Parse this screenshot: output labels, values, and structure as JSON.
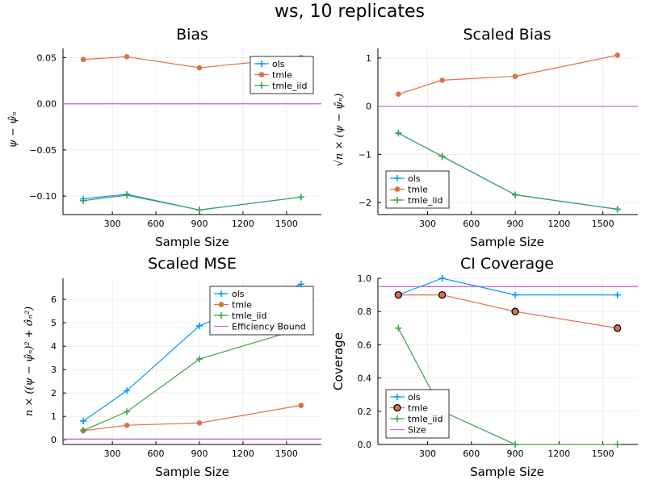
{
  "figure_title": "ws, 10 replicates",
  "colors": {
    "ols": "#009AFA",
    "tmle": "#E26F46",
    "tmle_iid": "#3DA44D",
    "bound": "#C271D2"
  },
  "chart_data": [
    {
      "type": "line",
      "title": "Bias",
      "xlabel": "Sample Size",
      "ylabel": "ψ − ψ̂ₙ",
      "x": [
        100,
        400,
        900,
        1600
      ],
      "xlim": [
        -40,
        1740
      ],
      "ylim": [
        -0.12,
        0.06
      ],
      "xticks": [
        300,
        600,
        900,
        1200,
        1500
      ],
      "yticks": [
        -0.1,
        -0.05,
        0.0,
        0.05
      ],
      "ytick_labels": [
        "−0.10",
        "−0.05",
        "0.00",
        "0.05"
      ],
      "series": [
        {
          "name": "ols",
          "key": "ols",
          "marker": "plus",
          "values": [
            -0.103,
            -0.098,
            -0.115,
            -0.101
          ]
        },
        {
          "name": "tmle",
          "key": "tmle",
          "marker": "circle",
          "values": [
            0.048,
            0.051,
            0.039,
            0.05
          ]
        },
        {
          "name": "tmle_iid",
          "key": "tmle_iid",
          "marker": "plus",
          "values": [
            -0.105,
            -0.099,
            -0.115,
            -0.101
          ]
        }
      ],
      "hlines": [
        {
          "key": "bound",
          "value": 0.0
        }
      ],
      "legend": {
        "position": "top-right",
        "entries": [
          "ols",
          "tmle",
          "tmle_iid"
        ]
      }
    },
    {
      "type": "line",
      "title": "Scaled Bias",
      "xlabel": "Sample Size",
      "ylabel": "√n × (ψ − ψ̂ₙ)",
      "x": [
        100,
        400,
        900,
        1600
      ],
      "xlim": [
        -40,
        1740
      ],
      "ylim": [
        -2.25,
        1.2
      ],
      "xticks": [
        300,
        600,
        900,
        1200,
        1500
      ],
      "yticks": [
        -2,
        -1,
        0,
        1
      ],
      "ytick_labels": [
        "−2",
        "−1",
        "0",
        "1"
      ],
      "series": [
        {
          "name": "ols",
          "key": "ols",
          "marker": "plus",
          "values": [
            -0.56,
            -1.04,
            -1.84,
            -2.14
          ]
        },
        {
          "name": "tmle",
          "key": "tmle",
          "marker": "circle",
          "values": [
            0.25,
            0.54,
            0.62,
            1.06
          ]
        },
        {
          "name": "tmle_iid",
          "key": "tmle_iid",
          "marker": "plus",
          "values": [
            -0.56,
            -1.04,
            -1.84,
            -2.14
          ]
        }
      ],
      "hlines": [
        {
          "key": "bound",
          "value": 0.0
        }
      ],
      "legend": {
        "position": "bottom-left",
        "entries": [
          "ols",
          "tmle",
          "tmle_iid"
        ]
      }
    },
    {
      "type": "line",
      "title": "Scaled MSE",
      "xlabel": "Sample Size",
      "ylabel": "n × ((ψ − ψ̂ₙ)² + σ̂ₙ²)",
      "x": [
        100,
        400,
        900,
        1600
      ],
      "xlim": [
        -40,
        1740
      ],
      "ylim": [
        -0.2,
        6.9
      ],
      "xticks": [
        300,
        600,
        900,
        1200,
        1500
      ],
      "yticks": [
        0,
        1,
        2,
        3,
        4,
        5,
        6
      ],
      "ytick_labels": [
        "0",
        "1",
        "2",
        "3",
        "4",
        "5",
        "6"
      ],
      "series": [
        {
          "name": "ols",
          "key": "ols",
          "marker": "plus",
          "values": [
            0.8,
            2.1,
            4.87,
            6.65
          ]
        },
        {
          "name": "tmle",
          "key": "tmle",
          "marker": "circle",
          "values": [
            0.39,
            0.62,
            0.72,
            1.47
          ]
        },
        {
          "name": "tmle_iid",
          "key": "tmle_iid",
          "marker": "plus",
          "values": [
            0.4,
            1.2,
            3.45,
            4.75
          ]
        }
      ],
      "hlines": [
        {
          "key": "bound",
          "value": 0.03
        }
      ],
      "legend": {
        "position": "top-right",
        "entries": [
          "ols",
          "tmle",
          "tmle_iid",
          "Efficiency Bound"
        ]
      }
    },
    {
      "type": "line",
      "title": "CI Coverage",
      "xlabel": "Sample Size",
      "ylabel": "Coverage",
      "x": [
        100,
        400,
        900,
        1600
      ],
      "xlim": [
        -40,
        1740
      ],
      "ylim": [
        0.0,
        1.0
      ],
      "xticks": [
        300,
        600,
        900,
        1200,
        1500
      ],
      "yticks": [
        0.0,
        0.2,
        0.4,
        0.6,
        0.8,
        1.0
      ],
      "ytick_labels": [
        "0.0",
        "0.2",
        "0.4",
        "0.6",
        "0.8",
        "1.0"
      ],
      "series": [
        {
          "name": "ols",
          "key": "ols",
          "marker": "plus",
          "values": [
            0.9,
            1.0,
            0.9,
            0.9
          ]
        },
        {
          "name": "tmle",
          "key": "tmle",
          "marker": "circle-outlined",
          "values": [
            0.9,
            0.9,
            0.8,
            0.7
          ]
        },
        {
          "name": "tmle_iid",
          "key": "tmle_iid",
          "marker": "plus",
          "values": [
            0.7,
            0.2,
            0.0,
            0.0
          ]
        }
      ],
      "hlines": [
        {
          "key": "bound",
          "value": 0.95
        }
      ],
      "legend": {
        "position": "bottom-left",
        "entries": [
          "ols",
          "tmle",
          "tmle_iid",
          "Size"
        ]
      }
    }
  ]
}
